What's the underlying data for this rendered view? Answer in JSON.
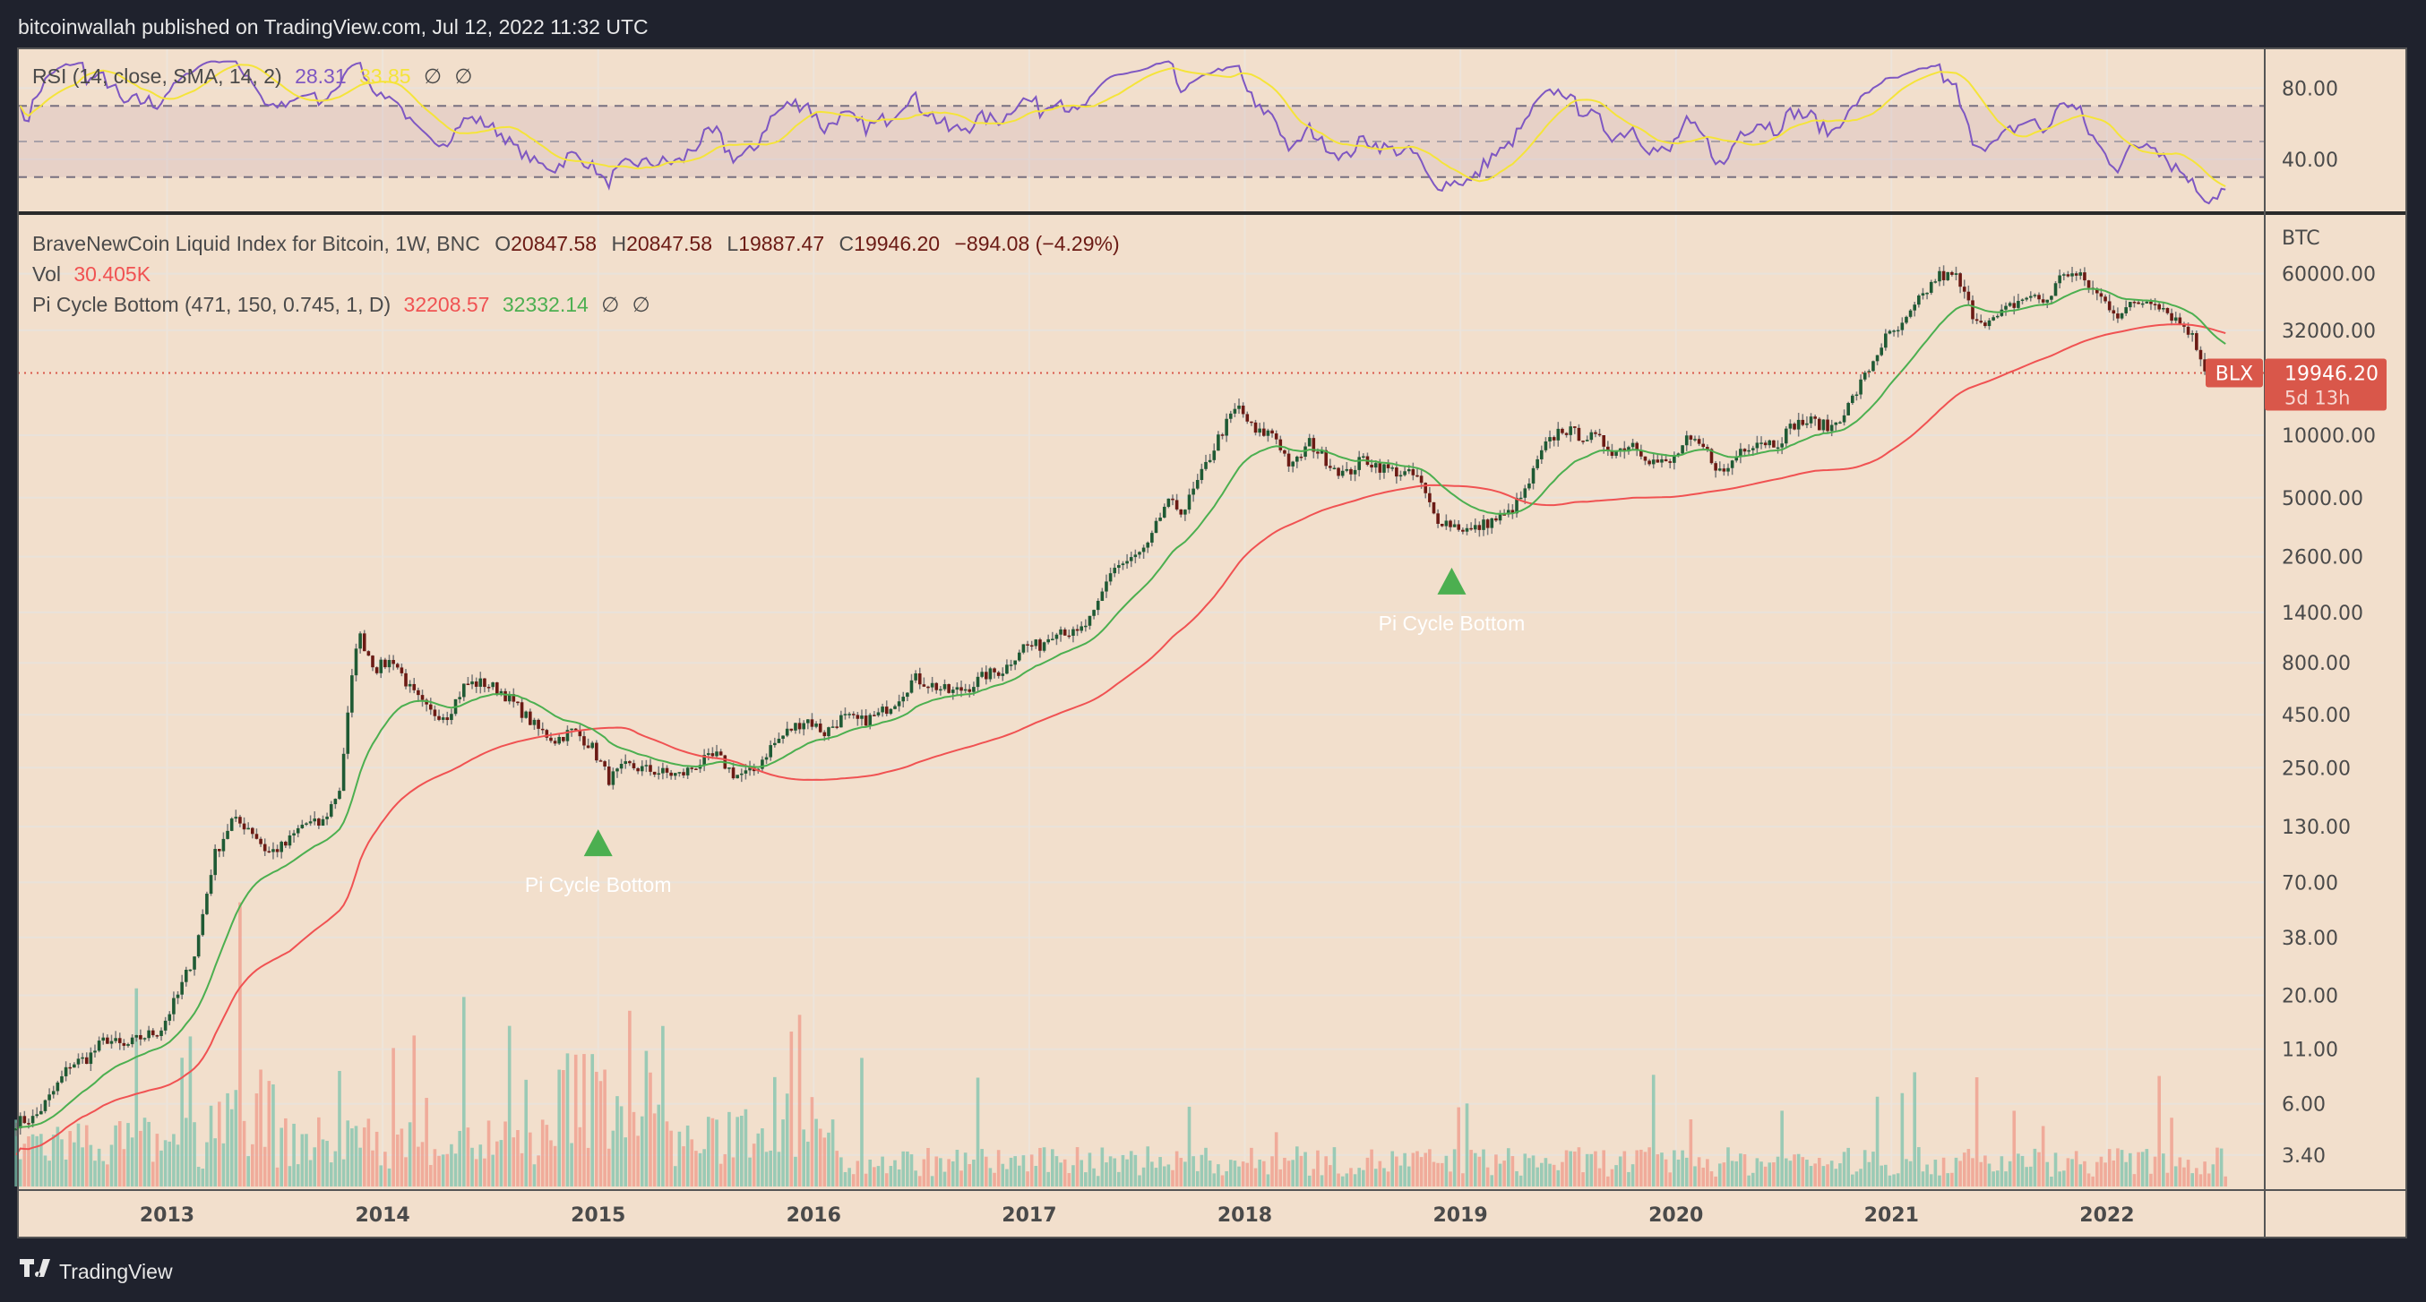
{
  "header": {
    "published": "bitcoinwallah published on TradingView.com, Jul 12, 2022 11:32 UTC"
  },
  "footer": {
    "brand": "TradingView"
  },
  "colors": {
    "background": "#f2dfcc",
    "up": "#1f5a34",
    "down": "#6b1a14",
    "rsi": "#7e57c2",
    "rsi_sma": "#f5e43a",
    "pi_red": "#f05252",
    "pi_green": "#4caf50",
    "price_tag": "#d9574a"
  },
  "legend": {
    "rsi": {
      "label": "RSI (14, close, SMA, 14, 2)",
      "value": "28.31",
      "sma": "33.85",
      "na1": "∅",
      "na2": "∅"
    },
    "symbol": {
      "label": "BraveNewCoin Liquid Index for Bitcoin, 1W, BNC",
      "o_lbl": "O",
      "o": "20847.58",
      "h_lbl": "H",
      "h": "20847.58",
      "l_lbl": "L",
      "l": "19887.47",
      "c_lbl": "C",
      "c": "19946.20",
      "change": "−894.08 (−4.29%)"
    },
    "vol": {
      "label": "Vol",
      "value": "30.405K"
    },
    "pi": {
      "label": "Pi Cycle Bottom (471, 150, 0.745, 1, D)",
      "red": "32208.57",
      "green": "32332.14",
      "na1": "∅",
      "na2": "∅"
    }
  },
  "chart_data": {
    "type": "candlestick",
    "scale": "log",
    "currency_label": "BTC",
    "price_ticks": [
      "60000.00",
      "32000.00",
      "10000.00",
      "5000.00",
      "2600.00",
      "1400.00",
      "800.00",
      "450.00",
      "250.00",
      "130.00",
      "70.00",
      "38.00",
      "20.00",
      "11.00",
      "6.00",
      "3.40"
    ],
    "rsi_ticks": [
      "80.00",
      "40.00"
    ],
    "rsi_levels": [
      70,
      50,
      30
    ],
    "x_ticks": [
      "2013",
      "2014",
      "2015",
      "2016",
      "2017",
      "2018",
      "2019",
      "2020",
      "2021",
      "2022"
    ],
    "x_start": 2012.3,
    "monthly_close": [
      4.9,
      5.1,
      6.7,
      9.3,
      10.0,
      12.4,
      11.2,
      12.6,
      13.5,
      20,
      33,
      93,
      139,
      129,
      97,
      106,
      135,
      133,
      198,
      1130,
      750,
      830,
      580,
      460,
      450,
      630,
      640,
      585,
      480,
      385,
      340,
      378,
      320,
      220,
      255,
      245,
      236,
      230,
      263,
      284,
      230,
      236,
      314,
      377,
      430,
      368,
      437,
      416,
      448,
      531,
      673,
      624,
      575,
      609,
      700,
      742,
      963,
      970,
      1190,
      1080,
      1350,
      2300,
      2480,
      2880,
      4700,
      4340,
      6450,
      10000,
      13800,
      10200,
      10300,
      6900,
      9200,
      7500,
      6400,
      7700,
      7000,
      6600,
      6300,
      4000,
      3700,
      3450,
      3830,
      4100,
      5300,
      8500,
      10800,
      10000,
      9600,
      8300,
      9200,
      7550,
      7200,
      9350,
      8600,
      6400,
      8600,
      9450,
      9140,
      11350,
      11650,
      10780,
      13800,
      19700,
      29000,
      33100,
      45200,
      58800,
      57700,
      37300,
      35000,
      41500,
      47100,
      43800,
      61300,
      57000,
      46300,
      38500,
      43200,
      45500,
      37700,
      31800,
      19900,
      19946
    ],
    "last_price": 19946.2,
    "countdown": "5d 13h",
    "symbol_tag": "BLX",
    "annotations": [
      {
        "label": "Pi Cycle Bottom",
        "date": 2015.0,
        "price": 170
      },
      {
        "label": "Pi Cycle Bottom",
        "date": 2018.96,
        "price": 3100
      }
    ]
  }
}
